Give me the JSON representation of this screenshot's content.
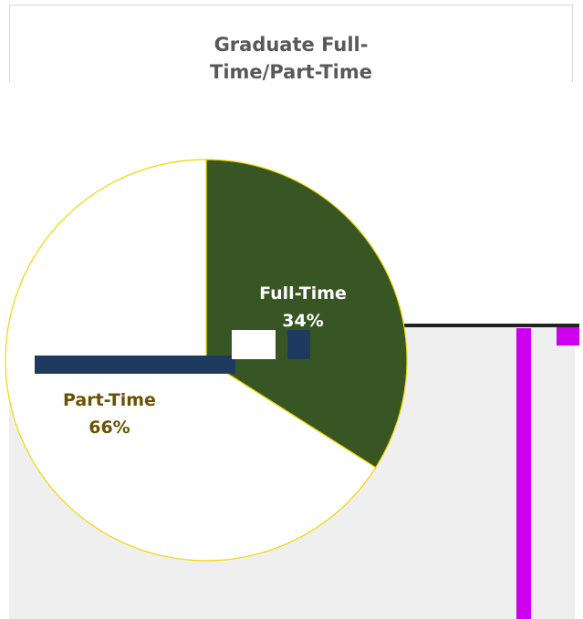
{
  "chart_data": {
    "type": "pie",
    "title": "Graduate Full-Time/Part-Time",
    "categories": [
      "Full-Time",
      "Part-Time"
    ],
    "values": [
      34,
      66
    ],
    "value_labels": [
      "34%",
      "66%"
    ],
    "colors": [
      "#375623",
      "#ffffff"
    ],
    "label_colors": [
      "#ffffff",
      "#6b5200"
    ]
  }
}
